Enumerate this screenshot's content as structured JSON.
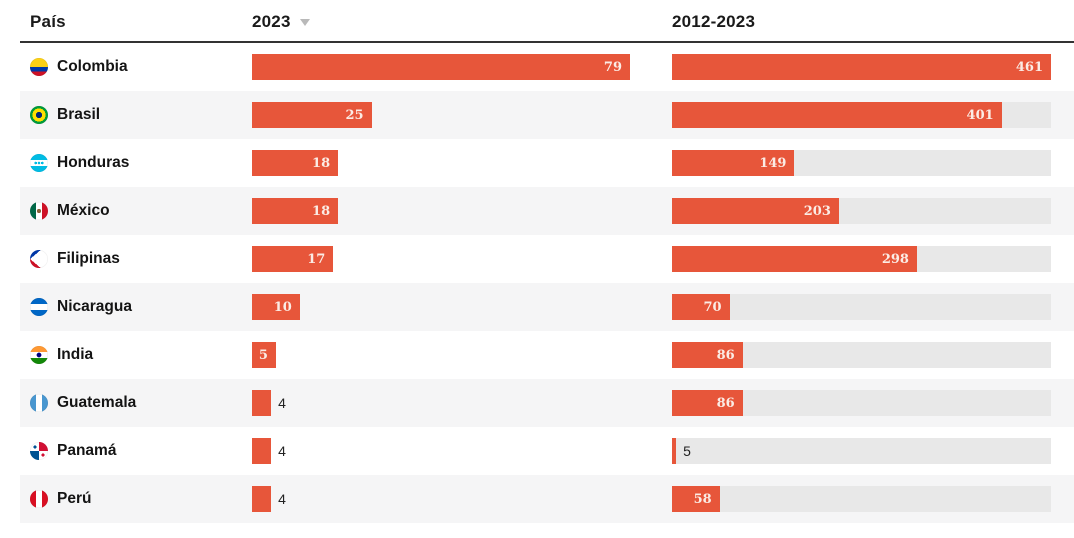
{
  "header": {
    "country_col": "País",
    "col_2023": "2023",
    "col_range": "2012-2023",
    "sort": {
      "column": "2023",
      "direction": "desc"
    }
  },
  "colors": {
    "bar": "#e7563a",
    "track": "#e8e8e8",
    "row_stripe": "#f5f5f6",
    "value_inside": "#fbece5",
    "value_outside": "#222222",
    "header_rule": "#333333"
  },
  "rows": [
    {
      "country": "Colombia",
      "flag": "colombia",
      "v2023": 79,
      "vrange": 461
    },
    {
      "country": "Brasil",
      "flag": "brasil",
      "v2023": 25,
      "vrange": 401
    },
    {
      "country": "Honduras",
      "flag": "honduras",
      "v2023": 18,
      "vrange": 149
    },
    {
      "country": "México",
      "flag": "mexico",
      "v2023": 18,
      "vrange": 203
    },
    {
      "country": "Filipinas",
      "flag": "filipinas",
      "v2023": 17,
      "vrange": 298
    },
    {
      "country": "Nicaragua",
      "flag": "nicaragua",
      "v2023": 10,
      "vrange": 70
    },
    {
      "country": "India",
      "flag": "india",
      "v2023": 5,
      "vrange": 86
    },
    {
      "country": "Guatemala",
      "flag": "guatemala",
      "v2023": 4,
      "vrange": 86
    },
    {
      "country": "Panamá",
      "flag": "panama",
      "v2023": 4,
      "vrange": 5
    },
    {
      "country": "Perú",
      "flag": "peru",
      "v2023": 4,
      "vrange": 58
    }
  ],
  "chart_data": {
    "type": "bar",
    "orientation": "horizontal",
    "title": "",
    "categories": [
      "Colombia",
      "Brasil",
      "Honduras",
      "México",
      "Filipinas",
      "Nicaragua",
      "India",
      "Guatemala",
      "Panamá",
      "Perú"
    ],
    "series": [
      {
        "name": "2023",
        "values": [
          79,
          25,
          18,
          18,
          17,
          10,
          5,
          4,
          4,
          4
        ],
        "xlim": [
          0,
          79
        ]
      },
      {
        "name": "2012-2023",
        "values": [
          461,
          401,
          149,
          203,
          298,
          70,
          86,
          86,
          5,
          58
        ],
        "xlim": [
          0,
          461
        ]
      }
    ],
    "sort": {
      "column": "2023",
      "direction": "desc"
    },
    "legend_position": "none",
    "grid": false,
    "bar_color": "#e7563a",
    "track_color": "#e8e8e8"
  }
}
